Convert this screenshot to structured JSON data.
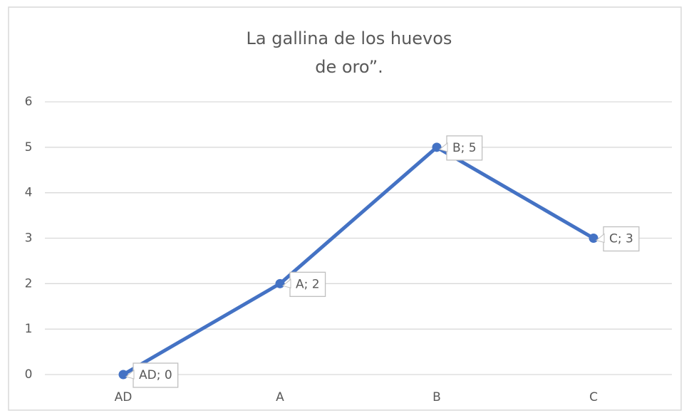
{
  "chart_data": {
    "type": "line",
    "title": [
      "La gallina de los huevos",
      "de oro”."
    ],
    "categories": [
      "AD",
      "A",
      "B",
      "C"
    ],
    "series": [
      {
        "color": "#4472c4",
        "values": [
          0,
          2,
          5,
          3
        ],
        "value_labels": [
          "AD; 0",
          "A; 2",
          "B; 5",
          "C; 3"
        ]
      }
    ],
    "ylim": [
      0,
      6
    ],
    "yticks": [
      0,
      1,
      2,
      3,
      4,
      5,
      6
    ],
    "grid": true
  }
}
